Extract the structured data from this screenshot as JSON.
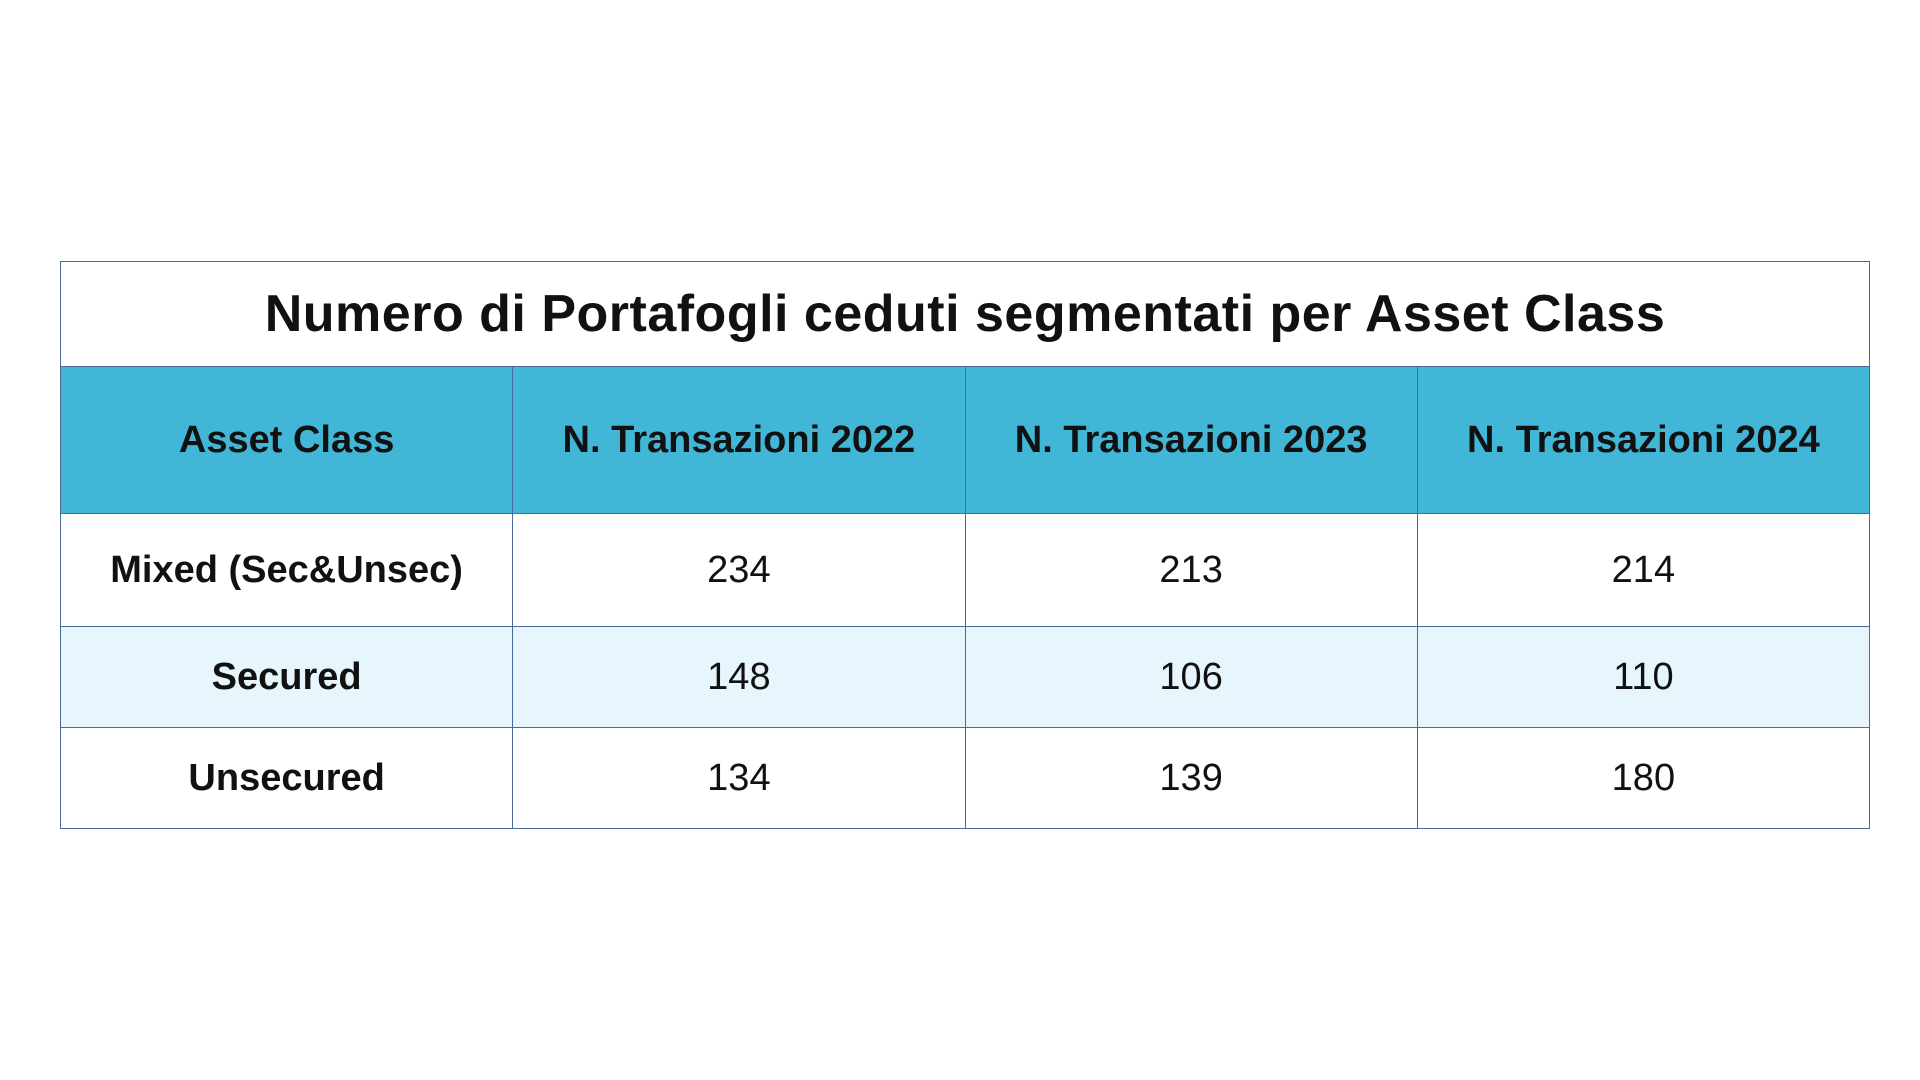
{
  "chart_data": {
    "type": "table",
    "title": "Numero di Portafogli ceduti segmentati per Asset Class",
    "columns": [
      "Asset Class",
      "N. Transazioni 2022",
      "N. Transazioni 2023",
      "N. Transazioni 2024"
    ],
    "rows": [
      {
        "label": "Mixed (Sec&Unsec)",
        "values": [
          234,
          213,
          214
        ]
      },
      {
        "label": "Secured",
        "values": [
          148,
          106,
          110
        ]
      },
      {
        "label": "Unsecured",
        "values": [
          134,
          139,
          180
        ]
      }
    ]
  },
  "colors": {
    "header_bg": "#42b6d6",
    "stripe_bg": "#e6f6fc",
    "border": "#4a6a9a"
  }
}
